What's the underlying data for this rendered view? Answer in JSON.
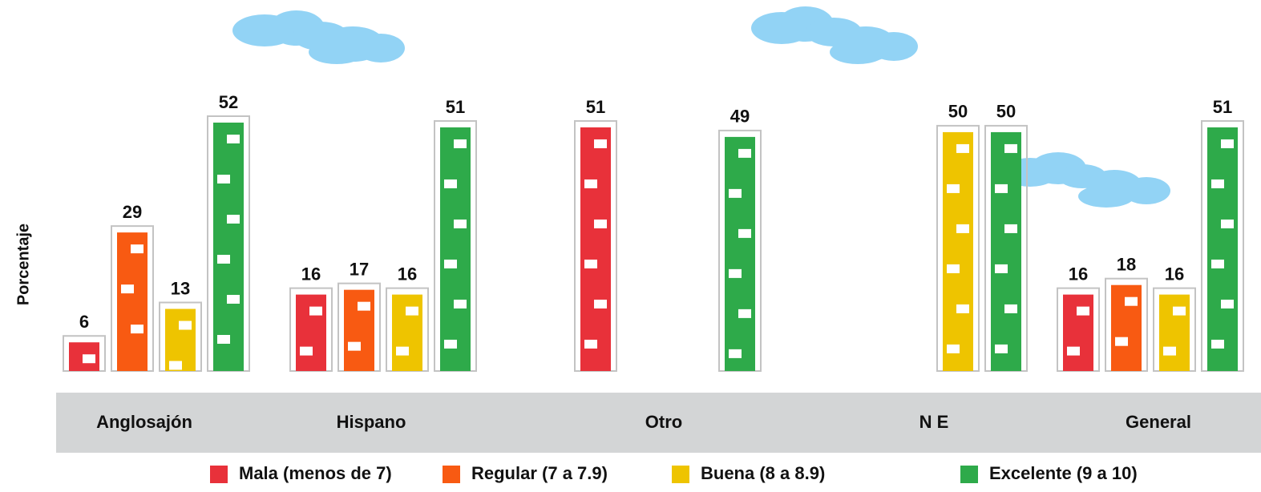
{
  "chart_data": {
    "type": "bar",
    "ylabel": "Porcentaje",
    "categories": [
      "Anglosajón",
      "Hispano",
      "Otro",
      "N E",
      "General"
    ],
    "series": [
      {
        "name": "Mala (menos de 7)",
        "color": "#e8313a",
        "values": [
          6,
          16,
          51,
          null,
          16
        ]
      },
      {
        "name": "Regular (7 a 7.9)",
        "color": "#f85a12",
        "values": [
          29,
          17,
          null,
          null,
          18
        ]
      },
      {
        "name": "Buena (8 a 8.9)",
        "color": "#eec400",
        "values": [
          13,
          16,
          null,
          50,
          16
        ]
      },
      {
        "name": "Excelente (9 a 10)",
        "color": "#2eaa4a",
        "values": [
          52,
          51,
          49,
          50,
          51
        ]
      }
    ]
  }
}
